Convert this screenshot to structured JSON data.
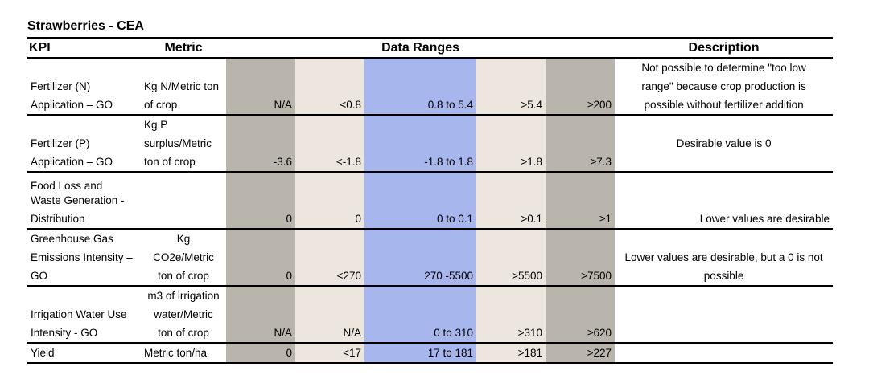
{
  "title": "Strawberries - CEA",
  "headers": {
    "kpi": "KPI",
    "metric": "Metric",
    "ranges": "Data Ranges",
    "description": "Description"
  },
  "rows": [
    {
      "kpi": [
        "",
        "Fertilizer (N)",
        "Application – GO"
      ],
      "metric": [
        "",
        "Kg N/Metric ton",
        "of crop"
      ],
      "ranges": [
        "N/A",
        "<0.8",
        "0.8 to 5.4",
        ">5.4",
        "≥200"
      ],
      "description": [
        "Not possible to determine \"too low",
        "range\" because crop production is",
        "possible without fertilizer addition"
      ]
    },
    {
      "kpi": [
        "",
        "Fertilizer (P)",
        "Application – GO"
      ],
      "metric": [
        "Kg P",
        "surplus/Metric",
        "ton of crop"
      ],
      "ranges": [
        "-3.6",
        "<-1.8",
        "-1.8 to 1.8",
        ">1.8",
        "≥7.3"
      ],
      "description": [
        "Desirable value is 0"
      ]
    },
    {
      "kpi": [
        "Food Loss and",
        "Waste Generation -",
        "Distribution"
      ],
      "metric": [
        "",
        "",
        ""
      ],
      "ranges": [
        "0",
        "0",
        "0 to 0.1",
        ">0.1",
        "≥1"
      ],
      "description": [
        "Lower values are desirable"
      ]
    },
    {
      "kpi": [
        "Greenhouse Gas",
        "Emissions Intensity –",
        "GO"
      ],
      "metric": [
        "Kg",
        "CO2e/Metric",
        "ton of crop"
      ],
      "ranges": [
        "0",
        "<270",
        "270 -5500",
        ">5500",
        ">7500"
      ],
      "description": [
        "Lower values are desirable, but a 0 is not",
        "possible"
      ]
    },
    {
      "kpi": [
        "",
        "Irrigation Water Use",
        "Intensity - GO"
      ],
      "metric": [
        "m3 of irrigation",
        "water/Metric",
        "ton of crop"
      ],
      "ranges": [
        "N/A",
        "N/A",
        "0 to 310",
        ">310",
        "≥620"
      ],
      "description": [
        ""
      ]
    },
    {
      "kpi": [
        "Yield"
      ],
      "metric": [
        "Metric ton/ha"
      ],
      "ranges": [
        "0",
        "<17",
        "17 to 181",
        ">181",
        ">227"
      ],
      "description": [
        ""
      ]
    }
  ]
}
